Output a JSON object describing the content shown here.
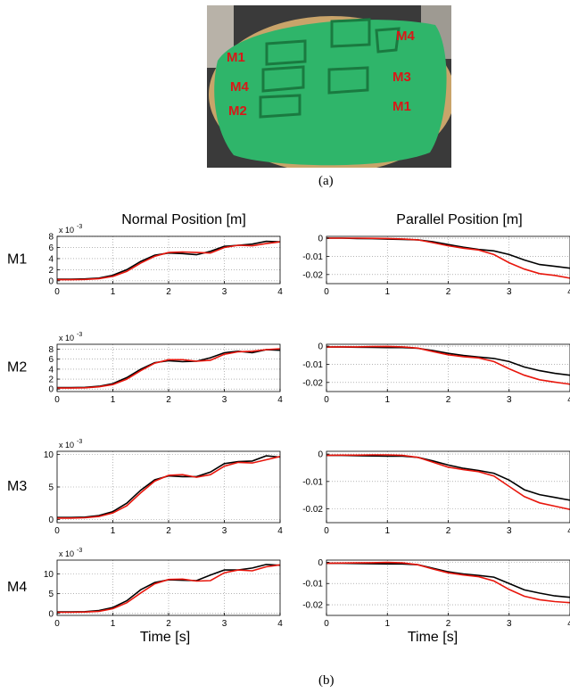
{
  "figure": {
    "photo_caption": "(a)",
    "plots_caption": "(b)",
    "photo_labels": [
      "M1",
      "M4",
      "M2",
      "M4",
      "M3",
      "M1"
    ],
    "colors": {
      "clay": "#2fb56a",
      "clay_dark": "#1f8f4c",
      "head": "#c9a46a",
      "background": "#3a3a3a",
      "label": "#d81818"
    }
  },
  "chart_data": {
    "type": "line",
    "column_titles": [
      "Normal Position [m]",
      "Parallel Position [m]"
    ],
    "row_labels": [
      "M1",
      "M2",
      "M3",
      "M4"
    ],
    "xlabel": "Time [s]",
    "xlim": [
      0,
      4
    ],
    "xticks": [
      0,
      1,
      2,
      3,
      4
    ],
    "grid": true,
    "series_colors": [
      "#000000",
      "#e8160c"
    ],
    "x": [
      0,
      0.25,
      0.5,
      0.75,
      1.0,
      1.25,
      1.5,
      1.75,
      2.0,
      2.25,
      2.5,
      2.75,
      3.0,
      3.25,
      3.5,
      3.75,
      4.0
    ],
    "panels": [
      {
        "row": "M1",
        "column": "normal",
        "scale_label": "x 10",
        "scale_exponent": "-3",
        "ylim": [
          -0.5,
          8
        ],
        "yticks": [
          0,
          2,
          4,
          6,
          8
        ],
        "ytick_labels": [
          "0",
          "2",
          "4",
          "6",
          "8"
        ],
        "series": [
          {
            "values": [
              0.3,
              0.3,
              0.35,
              0.5,
              1.0,
              2.0,
              3.5,
              4.6,
              5.0,
              4.9,
              4.7,
              5.3,
              6.2,
              6.4,
              6.6,
              7.1,
              7.0
            ]
          },
          {
            "values": [
              0.2,
              0.2,
              0.25,
              0.4,
              0.8,
              1.7,
              3.2,
              4.4,
              5.1,
              5.2,
              5.1,
              5.0,
              6.0,
              6.4,
              6.3,
              6.7,
              7.0
            ]
          }
        ]
      },
      {
        "row": "M1",
        "column": "parallel",
        "ylim": [
          -0.025,
          0.001
        ],
        "yticks": [
          0,
          -0.01,
          -0.02
        ],
        "ytick_labels": [
          "0",
          "-0.01",
          "-0.02"
        ],
        "series": [
          {
            "values": [
              0,
              0,
              -0.0002,
              -0.0003,
              -0.0005,
              -0.0007,
              -0.0009,
              -0.002,
              -0.0035,
              -0.005,
              -0.0062,
              -0.007,
              -0.009,
              -0.012,
              -0.0145,
              -0.0155,
              -0.0165
            ]
          },
          {
            "values": [
              0,
              0,
              0,
              -0.0001,
              -0.0002,
              -0.0004,
              -0.0009,
              -0.0025,
              -0.0042,
              -0.0055,
              -0.0065,
              -0.009,
              -0.0135,
              -0.017,
              -0.0195,
              -0.0205,
              -0.022
            ]
          }
        ]
      },
      {
        "row": "M2",
        "column": "normal",
        "scale_label": "x 10",
        "scale_exponent": "-3",
        "ylim": [
          -0.5,
          9
        ],
        "yticks": [
          0,
          2,
          4,
          6,
          8
        ],
        "ytick_labels": [
          "0",
          "2",
          "4",
          "6",
          "8"
        ],
        "series": [
          {
            "values": [
              0.3,
              0.3,
              0.35,
              0.55,
              1.1,
              2.3,
              4.0,
              5.3,
              5.7,
              5.5,
              5.6,
              6.3,
              7.3,
              7.6,
              7.3,
              7.9,
              7.8
            ]
          },
          {
            "values": [
              0.2,
              0.2,
              0.25,
              0.45,
              0.9,
              2.0,
              3.7,
              5.2,
              5.9,
              5.9,
              5.6,
              5.8,
              7.0,
              7.5,
              7.6,
              7.9,
              8.1
            ]
          }
        ]
      },
      {
        "row": "M2",
        "column": "parallel",
        "ylim": [
          -0.025,
          0.001
        ],
        "yticks": [
          0,
          -0.01,
          -0.02
        ],
        "ytick_labels": [
          "0",
          "-0.01",
          "-0.02"
        ],
        "series": [
          {
            "values": [
              -0.0005,
              -0.0005,
              -0.0006,
              -0.0007,
              -0.0008,
              -0.0008,
              -0.0012,
              -0.0025,
              -0.004,
              -0.0052,
              -0.006,
              -0.0068,
              -0.0085,
              -0.0115,
              -0.0135,
              -0.015,
              -0.016
            ]
          },
          {
            "values": [
              -0.0005,
              -0.0004,
              -0.0004,
              -0.0003,
              -0.0002,
              -0.0004,
              -0.0011,
              -0.003,
              -0.0048,
              -0.0058,
              -0.0065,
              -0.0085,
              -0.0125,
              -0.016,
              -0.0185,
              -0.0198,
              -0.021
            ]
          }
        ]
      },
      {
        "row": "M3",
        "column": "normal",
        "scale_label": "x 10",
        "scale_exponent": "-3",
        "ylim": [
          -0.5,
          10.5
        ],
        "yticks": [
          0,
          5,
          10
        ],
        "ytick_labels": [
          "0",
          "5",
          "10"
        ],
        "series": [
          {
            "values": [
              0.3,
              0.3,
              0.35,
              0.6,
              1.2,
              2.5,
              4.5,
              6.1,
              6.7,
              6.6,
              6.6,
              7.3,
              8.6,
              8.9,
              9.0,
              9.8,
              9.6
            ]
          },
          {
            "values": [
              0.2,
              0.2,
              0.25,
              0.45,
              1.0,
              2.1,
              4.1,
              5.9,
              6.8,
              6.9,
              6.5,
              6.9,
              8.2,
              8.8,
              8.7,
              9.2,
              9.7
            ]
          }
        ]
      },
      {
        "row": "M3",
        "column": "parallel",
        "ylim": [
          -0.025,
          0.001
        ],
        "yticks": [
          0,
          -0.01,
          -0.02
        ],
        "ytick_labels": [
          "0",
          "-0.01",
          "-0.02"
        ],
        "series": [
          {
            "values": [
              -0.0005,
              -0.0005,
              -0.0006,
              -0.0007,
              -0.0008,
              -0.0008,
              -0.0012,
              -0.0025,
              -0.004,
              -0.0052,
              -0.006,
              -0.007,
              -0.0095,
              -0.013,
              -0.0148,
              -0.0158,
              -0.0168
            ]
          },
          {
            "values": [
              -0.0005,
              -0.0004,
              -0.0004,
              -0.0003,
              -0.0003,
              -0.0005,
              -0.0012,
              -0.003,
              -0.0048,
              -0.0057,
              -0.0064,
              -0.008,
              -0.0118,
              -0.0155,
              -0.0178,
              -0.019,
              -0.0202
            ]
          }
        ]
      },
      {
        "row": "M4",
        "column": "normal",
        "scale_label": "x 10",
        "scale_exponent": "-3",
        "ylim": [
          -0.5,
          13.5
        ],
        "yticks": [
          0,
          5,
          10
        ],
        "ytick_labels": [
          "0",
          "5",
          "10"
        ],
        "series": [
          {
            "values": [
              0.4,
              0.4,
              0.45,
              0.75,
              1.5,
              3.2,
              6.0,
              7.8,
              8.5,
              8.4,
              8.3,
              9.7,
              11.0,
              11.0,
              11.5,
              12.4,
              12.2
            ]
          },
          {
            "values": [
              0.3,
              0.3,
              0.35,
              0.55,
              1.2,
              2.7,
              5.2,
              7.5,
              8.6,
              8.7,
              8.2,
              8.3,
              10.3,
              11.0,
              10.8,
              11.8,
              12.3
            ]
          }
        ]
      },
      {
        "row": "M4",
        "column": "parallel",
        "ylim": [
          -0.025,
          0.001
        ],
        "yticks": [
          0,
          -0.01,
          -0.02
        ],
        "ytick_labels": [
          "0",
          "-0.01",
          "-0.02"
        ],
        "series": [
          {
            "values": [
              -0.0005,
              -0.0005,
              -0.0006,
              -0.0007,
              -0.0008,
              -0.0008,
              -0.0012,
              -0.0028,
              -0.0045,
              -0.0055,
              -0.0062,
              -0.007,
              -0.01,
              -0.013,
              -0.0145,
              -0.0158,
              -0.0165
            ]
          },
          {
            "values": [
              -0.0005,
              -0.0004,
              -0.0003,
              -0.0002,
              -0.0001,
              -0.0003,
              -0.0012,
              -0.0032,
              -0.005,
              -0.006,
              -0.0068,
              -0.0088,
              -0.0128,
              -0.016,
              -0.0176,
              -0.0185,
              -0.019
            ]
          }
        ]
      }
    ]
  }
}
